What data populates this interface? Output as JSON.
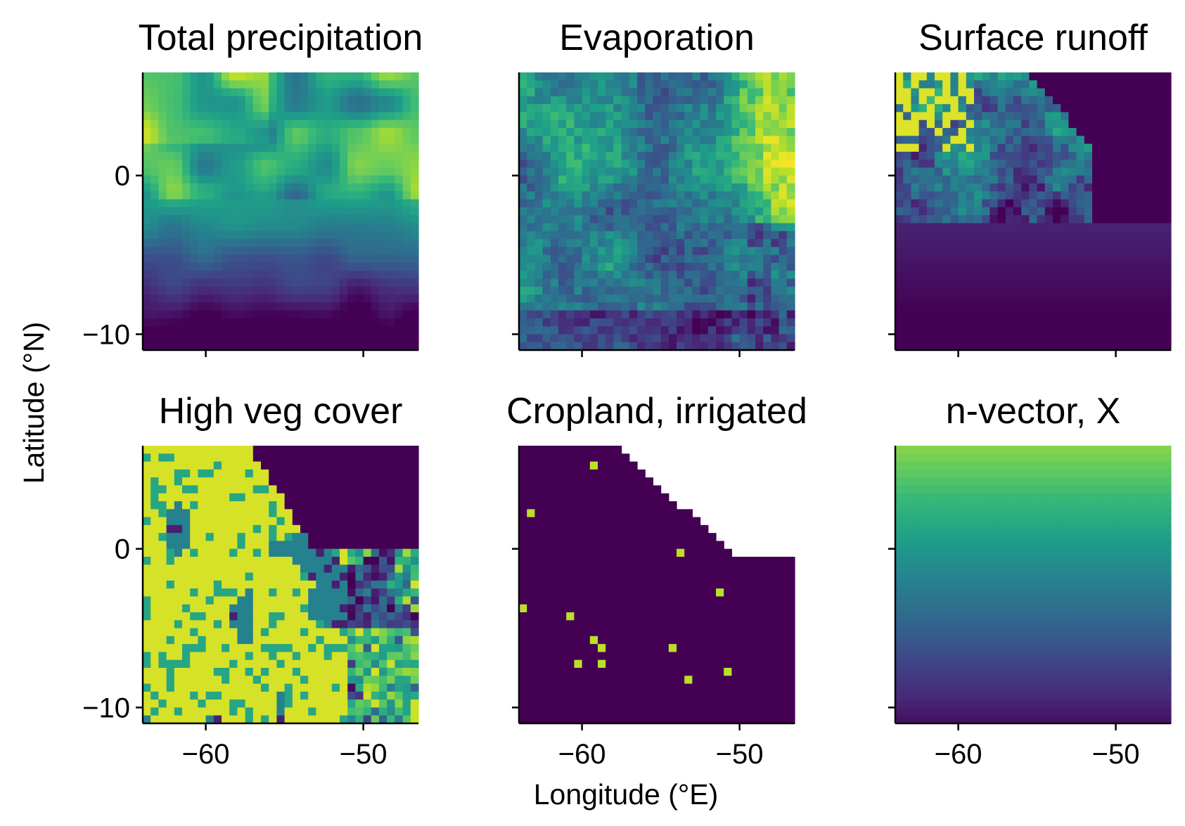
{
  "figure": {
    "xlabel": "Longitude (°E)",
    "ylabel": "Latitude (°N)"
  },
  "colormap": {
    "name": "viridis",
    "stops": [
      "#440154",
      "#482878",
      "#3e4989",
      "#31688e",
      "#26828e",
      "#1f9e89",
      "#35b779",
      "#6ece58",
      "#b5de2b",
      "#fde725"
    ]
  },
  "chart_data": [
    {
      "type": "heatmap",
      "title": "Total precipitation",
      "x_range": [
        -64,
        -46.5
      ],
      "y_range": [
        -11,
        6.5
      ],
      "x_ticks": [
        -60,
        -50
      ],
      "y_ticks": [
        0,
        -10
      ],
      "x_tick_labels": [
        "",
        ""
      ],
      "y_tick_labels": [
        "0",
        "−10"
      ],
      "grid": [
        35,
        35
      ],
      "pattern": "precip"
    },
    {
      "type": "heatmap",
      "title": "Evaporation",
      "x_range": [
        -64,
        -46.5
      ],
      "y_range": [
        -11,
        6.5
      ],
      "x_ticks": [
        -60,
        -50
      ],
      "y_ticks": [
        0,
        -10
      ],
      "x_tick_labels": [
        "",
        ""
      ],
      "y_tick_labels": [
        "",
        ""
      ],
      "grid": [
        35,
        35
      ],
      "pattern": "evap"
    },
    {
      "type": "heatmap",
      "title": "Surface runoff",
      "x_range": [
        -64,
        -46.5
      ],
      "y_range": [
        -11,
        6.5
      ],
      "x_ticks": [
        -60,
        -50
      ],
      "y_ticks": [
        0,
        -10
      ],
      "x_tick_labels": [
        "",
        ""
      ],
      "y_tick_labels": [
        "",
        ""
      ],
      "grid": [
        35,
        35
      ],
      "pattern": "runoff"
    },
    {
      "type": "heatmap",
      "title": "High veg cover",
      "x_range": [
        -64,
        -46.5
      ],
      "y_range": [
        -11,
        6.5
      ],
      "x_ticks": [
        -60,
        -50
      ],
      "y_ticks": [
        0,
        -10
      ],
      "x_tick_labels": [
        "−60",
        "−50"
      ],
      "y_tick_labels": [
        "0",
        "−10"
      ],
      "grid": [
        35,
        35
      ],
      "pattern": "highveg"
    },
    {
      "type": "heatmap",
      "title": "Cropland, irrigated",
      "x_range": [
        -64,
        -46.5
      ],
      "y_range": [
        -11,
        6.5
      ],
      "x_ticks": [
        -60,
        -50
      ],
      "y_ticks": [
        0,
        -10
      ],
      "x_tick_labels": [
        "−60",
        "−50"
      ],
      "y_tick_labels": [
        "",
        ""
      ],
      "grid": [
        35,
        35
      ],
      "pattern": "crop"
    },
    {
      "type": "heatmap",
      "title": "n-vector, X",
      "x_range": [
        -64,
        -46.5
      ],
      "y_range": [
        -11,
        6.5
      ],
      "x_ticks": [
        -60,
        -50
      ],
      "y_ticks": [
        0,
        -10
      ],
      "x_tick_labels": [
        "−60",
        "−50"
      ],
      "y_tick_labels": [
        "",
        ""
      ],
      "grid": [
        35,
        35
      ],
      "pattern": "nvector"
    }
  ]
}
